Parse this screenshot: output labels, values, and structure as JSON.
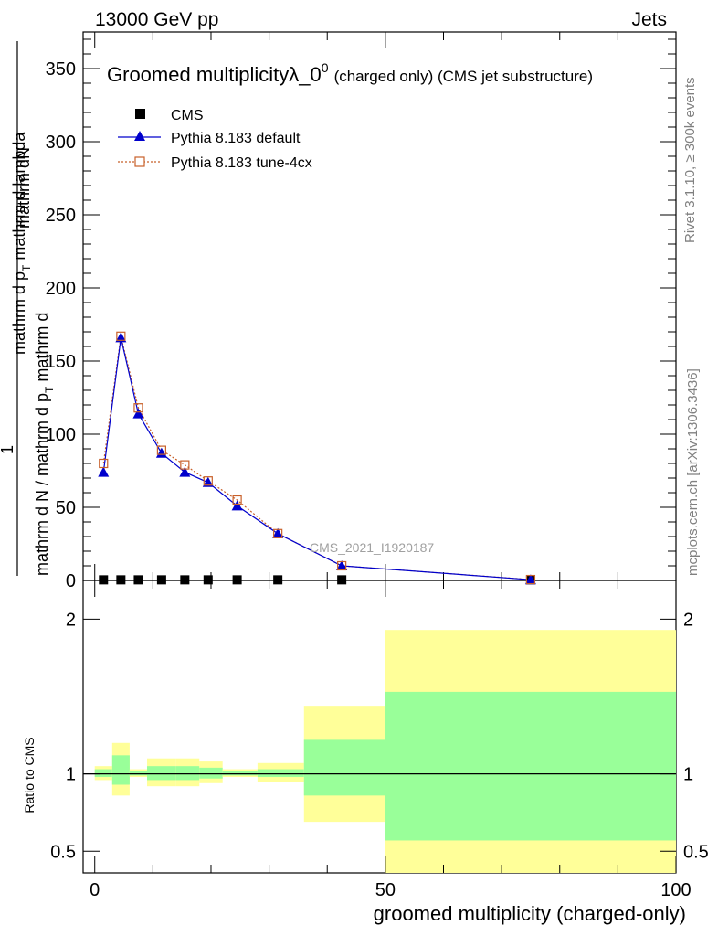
{
  "header": {
    "left": "13000 GeV pp",
    "right": "Jets"
  },
  "title": {
    "main": "Groomed multiplicity",
    "lambda": "λ_0",
    "sup": "0",
    "sub": "(charged only) (CMS jet substructure)"
  },
  "ylabel": {
    "numerator_lines": [
      "mathrm dN",
      "mathrm d p",
      "mathrm d lambda"
    ],
    "numerator_sub": "T",
    "one": "1",
    "denominator": "mathrm d N / mathrm d p",
    "denominator_sub": "T",
    "denominator_tail": "mathrm d",
    "numerator_text": "mathrm d",
    "numerator_tail": "N",
    "full_denominator": "mathrm d N / mathrm d p_T mathrm d p_T mathrm d lambda"
  },
  "side_labels": {
    "rivet": "Rivet 3.1.10, ≥ 300k events",
    "mcplots": "mcplots.cern.ch [arXiv:1306.3436]"
  },
  "watermark": "CMS_2021_I1920187",
  "ratio_ylabel": "Ratio to CMS",
  "xlabel": "groomed multiplicity (charged-only)",
  "chart_data": {
    "type": "scatter",
    "xlim": [
      -2,
      100
    ],
    "ylim": [
      0,
      375
    ],
    "ratio_ylim": [
      0.36,
      2.25
    ],
    "x_ticks": [
      0,
      50,
      100
    ],
    "y_ticks": [
      0,
      50,
      100,
      150,
      200,
      250,
      300,
      350
    ],
    "ratio_ticks": [
      0.5,
      1,
      2
    ],
    "x": [
      1.5,
      4.5,
      7.5,
      11.5,
      15.5,
      19.5,
      24.5,
      31.5,
      42.5,
      75
    ],
    "bins": [
      [
        0,
        3
      ],
      [
        3,
        6
      ],
      [
        6,
        9
      ],
      [
        9,
        14
      ],
      [
        14,
        18
      ],
      [
        18,
        22
      ],
      [
        22,
        28
      ],
      [
        28,
        36
      ],
      [
        36,
        50
      ],
      [
        50,
        100
      ]
    ],
    "legend": [
      {
        "name": "CMS",
        "marker": "square-filled",
        "color": "#000000"
      },
      {
        "name": "Pythia 8.183 default",
        "marker": "triangle",
        "color": "#0000cc"
      },
      {
        "name": "Pythia 8.183 tune-4cx",
        "marker": "square-open",
        "color": "#c8602a"
      }
    ],
    "series": [
      {
        "name": "CMS",
        "values": [
          0.4,
          0.4,
          0.4,
          0.4,
          0.4,
          0.4,
          0.4,
          0.4,
          0.4,
          0.4
        ]
      },
      {
        "name": "Pythia 8.183 default",
        "values": [
          74,
          166,
          114,
          87,
          74,
          67,
          51,
          32,
          10,
          0.5
        ]
      },
      {
        "name": "Pythia 8.183 tune-4cx",
        "values": [
          80,
          167,
          118,
          89,
          79,
          68,
          55,
          32,
          10,
          0.6
        ]
      }
    ],
    "ratio_band_green": [
      [
        0.98,
        1.03
      ],
      [
        0.93,
        1.12
      ],
      [
        0.99,
        1.02
      ],
      [
        0.96,
        1.05
      ],
      [
        0.96,
        1.05
      ],
      [
        0.97,
        1.04
      ],
      [
        0.99,
        1.02
      ],
      [
        0.98,
        1.03
      ],
      [
        0.86,
        1.22
      ],
      [
        0.57,
        1.53
      ]
    ],
    "ratio_band_yellow": [
      [
        0.96,
        1.05
      ],
      [
        0.86,
        1.2
      ],
      [
        0.98,
        1.03
      ],
      [
        0.92,
        1.1
      ],
      [
        0.92,
        1.1
      ],
      [
        0.94,
        1.08
      ],
      [
        0.98,
        1.03
      ],
      [
        0.95,
        1.07
      ],
      [
        0.69,
        1.44
      ],
      [
        0.3,
        1.93
      ]
    ]
  }
}
